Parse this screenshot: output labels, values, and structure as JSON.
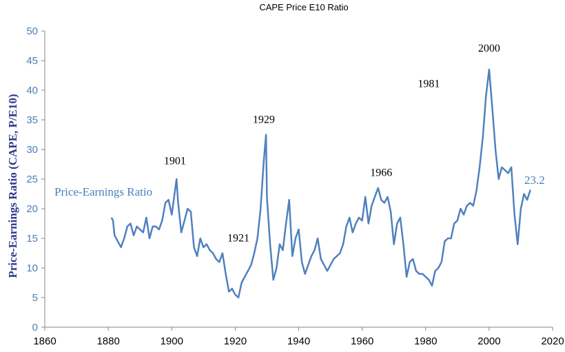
{
  "chart_data": {
    "type": "line",
    "title": "CAPE Price E10 Ratio",
    "xlabel": "",
    "ylabel": "Price-Earnings Ratio (CAPE, P/E10)",
    "xlim": [
      1860,
      2020
    ],
    "ylim": [
      0,
      50
    ],
    "x_ticks": [
      1860,
      1880,
      1900,
      1920,
      1940,
      1960,
      1980,
      2000,
      2020
    ],
    "y_ticks": [
      0,
      5,
      10,
      15,
      20,
      25,
      30,
      35,
      40,
      45,
      50
    ],
    "grid": false,
    "line_color": "#4f81bd",
    "series": [
      {
        "name": "Price-Earnings Ratio",
        "x": [
          1881,
          1881.5,
          1882,
          1883,
          1884,
          1885,
          1886,
          1887,
          1888,
          1889,
          1890,
          1891,
          1892,
          1893,
          1894,
          1895,
          1896,
          1897,
          1898,
          1899,
          1900,
          1901,
          1901.5,
          1902,
          1903,
          1904,
          1905,
          1906,
          1907,
          1908,
          1909,
          1910,
          1911,
          1912,
          1913,
          1914,
          1915,
          1916,
          1917,
          1918,
          1919,
          1920,
          1921,
          1922,
          1923,
          1924,
          1925,
          1926,
          1927,
          1928,
          1929,
          1929.7,
          1930,
          1931,
          1932,
          1933,
          1934,
          1935,
          1936,
          1937,
          1938,
          1939,
          1940,
          1941,
          1942,
          1943,
          1944,
          1945,
          1946,
          1947,
          1948,
          1949,
          1950,
          1951,
          1952,
          1953,
          1954,
          1955,
          1956,
          1957,
          1958,
          1959,
          1960,
          1961,
          1962,
          1963,
          1964,
          1965,
          1966,
          1967,
          1968,
          1969,
          1970,
          1971,
          1972,
          1973,
          1974,
          1975,
          1976,
          1977,
          1978,
          1979,
          1980,
          1981,
          1982,
          1983,
          1984,
          1985,
          1986,
          1987,
          1988,
          1989,
          1990,
          1991,
          1992,
          1993,
          1994,
          1995,
          1996,
          1997,
          1998,
          1999,
          2000,
          2001,
          2002,
          2003,
          2004,
          2005,
          2006,
          2007,
          2008,
          2009,
          2010,
          2011,
          2012,
          2013
        ],
        "values": [
          18.5,
          18,
          15.5,
          14.5,
          13.5,
          15,
          17,
          17.5,
          15.5,
          17,
          16.5,
          16,
          18.5,
          15,
          17,
          17,
          16.5,
          18,
          21,
          21.5,
          19,
          23,
          25,
          21,
          16,
          18,
          20,
          19.5,
          13.5,
          12,
          15,
          13.5,
          14,
          13,
          12.5,
          11.5,
          11,
          12.5,
          9,
          6,
          6.5,
          5.5,
          5,
          7.5,
          8.5,
          9.5,
          10.5,
          12.5,
          15,
          20,
          28,
          32.5,
          22,
          14,
          8,
          10,
          14,
          13,
          17.5,
          21.5,
          12,
          15,
          16.5,
          11,
          9,
          10.5,
          12,
          13,
          15,
          11.5,
          10.5,
          9.5,
          10.5,
          11.5,
          12,
          12.5,
          14,
          17,
          18.5,
          16,
          17.5,
          18.5,
          18,
          22,
          17.5,
          20.5,
          22,
          23.5,
          21.5,
          21,
          22,
          19.5,
          14,
          17.5,
          18.5,
          14,
          8.5,
          11,
          11.5,
          9.5,
          9,
          9,
          8.5,
          8,
          7,
          9.5,
          10,
          11,
          14.5,
          15,
          15,
          17.5,
          18,
          20,
          19,
          20.5,
          21,
          20.5,
          23,
          27,
          32,
          39,
          43.5,
          37,
          30,
          25,
          27,
          26.5,
          26,
          27,
          19,
          14,
          20,
          22.5,
          21.5,
          23.2
        ]
      }
    ],
    "annotations": [
      {
        "label": "1901",
        "x": 1901,
        "y": 27.5
      },
      {
        "label": "1921",
        "x": 1921,
        "y": 14.5
      },
      {
        "label": "1929",
        "x": 1929,
        "y": 34.5
      },
      {
        "label": "1966",
        "x": 1966,
        "y": 25.5
      },
      {
        "label": "1981",
        "x": 1981,
        "y": 40.5
      },
      {
        "label": "2000",
        "x": 2000,
        "y": 46.5
      }
    ],
    "series_label": "Price-Earnings Ratio",
    "last_value_label": "23.2"
  }
}
